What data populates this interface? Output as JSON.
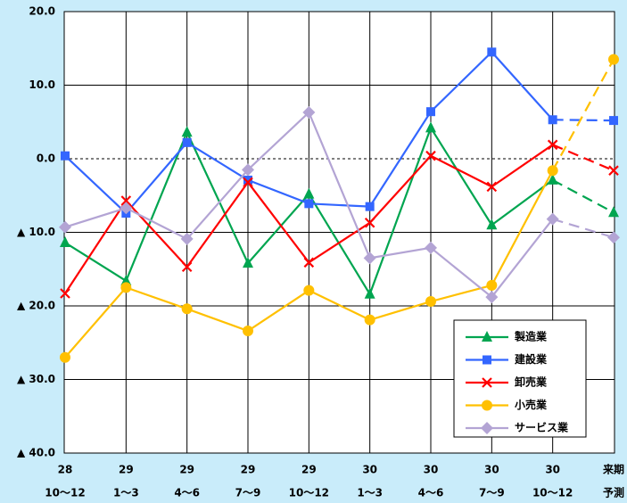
{
  "chart_data": {
    "type": "line",
    "categories": [
      [
        "28",
        "10～12"
      ],
      [
        "29",
        "1～3"
      ],
      [
        "29",
        "4～6"
      ],
      [
        "29",
        "7～9"
      ],
      [
        "29",
        "10～12"
      ],
      [
        "30",
        "1～3"
      ],
      [
        "30",
        "4～6"
      ],
      [
        "30",
        "7～9"
      ],
      [
        "30",
        "10～12"
      ],
      [
        "来期",
        "予測"
      ]
    ],
    "series": [
      {
        "name": "製造業",
        "color": "#00a550",
        "marker": "triangle",
        "values": [
          -11.4,
          -16.6,
          3.6,
          -14.2,
          -4.8,
          -18.4,
          4.2,
          -9.0,
          -2.9,
          -7.3
        ]
      },
      {
        "name": "建設業",
        "color": "#3366ff",
        "marker": "square",
        "values": [
          0.4,
          -7.4,
          2.2,
          -2.9,
          -6.1,
          -6.5,
          6.4,
          14.5,
          5.3,
          5.2
        ]
      },
      {
        "name": "卸売業",
        "color": "#ff0000",
        "marker": "x",
        "values": [
          -18.3,
          -5.7,
          -14.7,
          -3.2,
          -14.1,
          -8.7,
          0.4,
          -3.8,
          1.9,
          -1.6
        ]
      },
      {
        "name": "小売業",
        "color": "#ffc000",
        "marker": "circle",
        "values": [
          -27.0,
          -17.5,
          -20.4,
          -23.4,
          -17.9,
          -21.9,
          -19.4,
          -17.2,
          -1.6,
          13.5
        ]
      },
      {
        "name": "サービス業",
        "color": "#b3a4d4",
        "marker": "diamond",
        "values": [
          -9.3,
          -6.7,
          -10.9,
          -1.5,
          6.3,
          -13.5,
          -12.1,
          -18.8,
          -8.2,
          -10.7
        ]
      }
    ],
    "dashed_last_segment": true,
    "ylim": [
      -40,
      20
    ],
    "yticks": [
      {
        "value": -40,
        "label": "▲ 40.0"
      },
      {
        "value": -30,
        "label": "▲ 30.0"
      },
      {
        "value": -20,
        "label": "▲ 20.0"
      },
      {
        "value": -10,
        "label": "▲ 10.0"
      },
      {
        "value": 0,
        "label": "0.0"
      },
      {
        "value": 10,
        "label": "10.0"
      },
      {
        "value": 20,
        "label": "20.0"
      }
    ],
    "grid": true,
    "legend": "lower right"
  }
}
